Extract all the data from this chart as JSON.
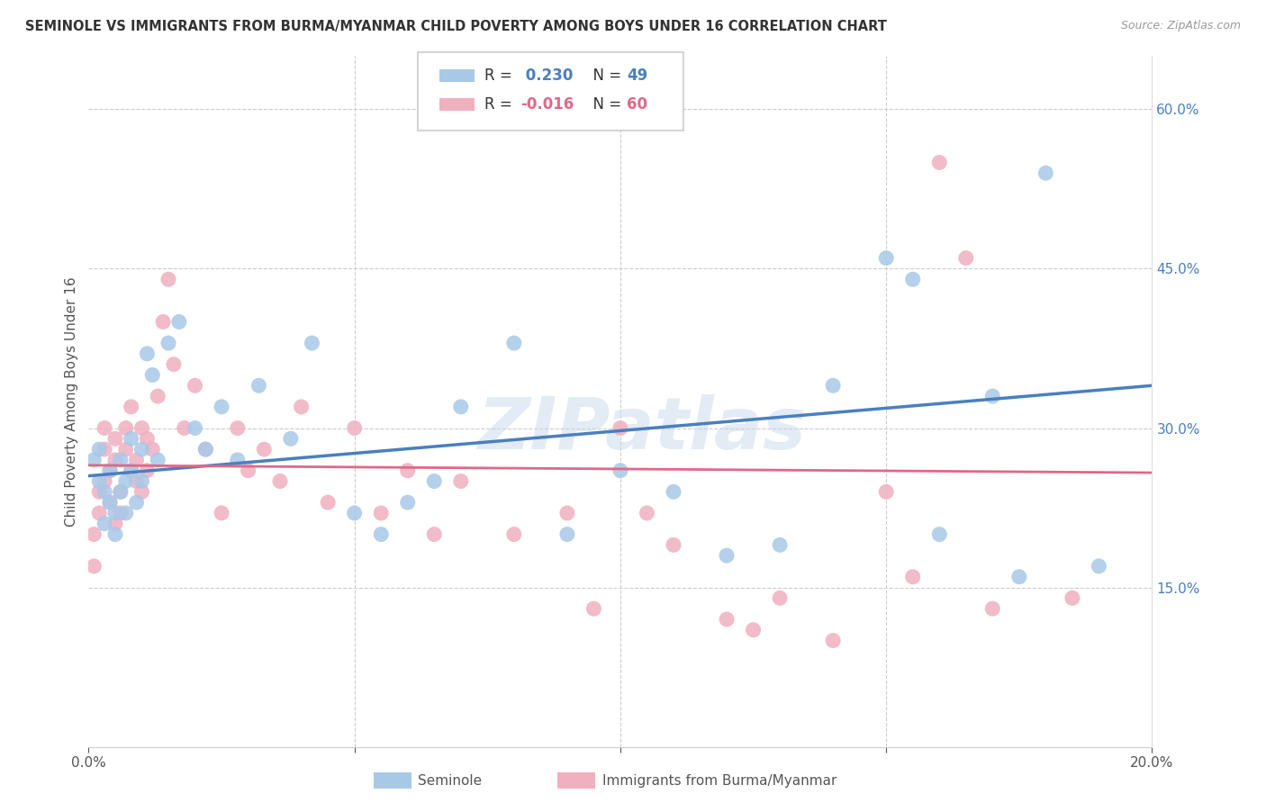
{
  "title": "SEMINOLE VS IMMIGRANTS FROM BURMA/MYANMAR CHILD POVERTY AMONG BOYS UNDER 16 CORRELATION CHART",
  "source": "Source: ZipAtlas.com",
  "ylabel": "Child Poverty Among Boys Under 16",
  "xlim": [
    0.0,
    0.2
  ],
  "ylim": [
    0.0,
    0.65
  ],
  "seminole_R": 0.23,
  "seminole_N": 49,
  "burma_R": -0.016,
  "burma_N": 60,
  "blue_color": "#a8c8e8",
  "pink_color": "#f0b0c0",
  "blue_line_color": "#4a7fc0",
  "pink_line_color": "#e06888",
  "watermark": "ZIPatlas",
  "blue_line_y0": 0.255,
  "blue_line_y1": 0.34,
  "pink_line_y0": 0.265,
  "pink_line_y1": 0.258,
  "seminole_x": [
    0.001,
    0.002,
    0.002,
    0.003,
    0.003,
    0.004,
    0.004,
    0.005,
    0.005,
    0.006,
    0.006,
    0.007,
    0.007,
    0.008,
    0.008,
    0.009,
    0.01,
    0.01,
    0.011,
    0.012,
    0.013,
    0.015,
    0.017,
    0.02,
    0.022,
    0.025,
    0.028,
    0.032,
    0.038,
    0.042,
    0.05,
    0.055,
    0.06,
    0.065,
    0.07,
    0.08,
    0.09,
    0.1,
    0.11,
    0.12,
    0.13,
    0.14,
    0.15,
    0.155,
    0.16,
    0.17,
    0.175,
    0.18,
    0.19
  ],
  "seminole_y": [
    0.27,
    0.25,
    0.28,
    0.21,
    0.24,
    0.23,
    0.26,
    0.2,
    0.22,
    0.24,
    0.27,
    0.25,
    0.22,
    0.26,
    0.29,
    0.23,
    0.28,
    0.25,
    0.37,
    0.35,
    0.27,
    0.38,
    0.4,
    0.3,
    0.28,
    0.32,
    0.27,
    0.34,
    0.29,
    0.38,
    0.22,
    0.2,
    0.23,
    0.25,
    0.32,
    0.38,
    0.2,
    0.26,
    0.24,
    0.18,
    0.19,
    0.34,
    0.46,
    0.44,
    0.2,
    0.33,
    0.16,
    0.54,
    0.17
  ],
  "burma_x": [
    0.001,
    0.001,
    0.002,
    0.002,
    0.003,
    0.003,
    0.003,
    0.004,
    0.004,
    0.005,
    0.005,
    0.005,
    0.006,
    0.006,
    0.007,
    0.007,
    0.008,
    0.008,
    0.009,
    0.009,
    0.01,
    0.01,
    0.011,
    0.011,
    0.012,
    0.013,
    0.014,
    0.015,
    0.016,
    0.018,
    0.02,
    0.022,
    0.025,
    0.028,
    0.03,
    0.033,
    0.036,
    0.04,
    0.045,
    0.05,
    0.055,
    0.06,
    0.065,
    0.07,
    0.08,
    0.09,
    0.095,
    0.1,
    0.105,
    0.11,
    0.12,
    0.125,
    0.13,
    0.14,
    0.15,
    0.155,
    0.16,
    0.165,
    0.17,
    0.185
  ],
  "burma_y": [
    0.17,
    0.2,
    0.24,
    0.22,
    0.28,
    0.25,
    0.3,
    0.26,
    0.23,
    0.21,
    0.27,
    0.29,
    0.24,
    0.22,
    0.3,
    0.28,
    0.26,
    0.32,
    0.27,
    0.25,
    0.3,
    0.24,
    0.29,
    0.26,
    0.28,
    0.33,
    0.4,
    0.44,
    0.36,
    0.3,
    0.34,
    0.28,
    0.22,
    0.3,
    0.26,
    0.28,
    0.25,
    0.32,
    0.23,
    0.3,
    0.22,
    0.26,
    0.2,
    0.25,
    0.2,
    0.22,
    0.13,
    0.3,
    0.22,
    0.19,
    0.12,
    0.11,
    0.14,
    0.1,
    0.24,
    0.16,
    0.55,
    0.46,
    0.13,
    0.14
  ]
}
